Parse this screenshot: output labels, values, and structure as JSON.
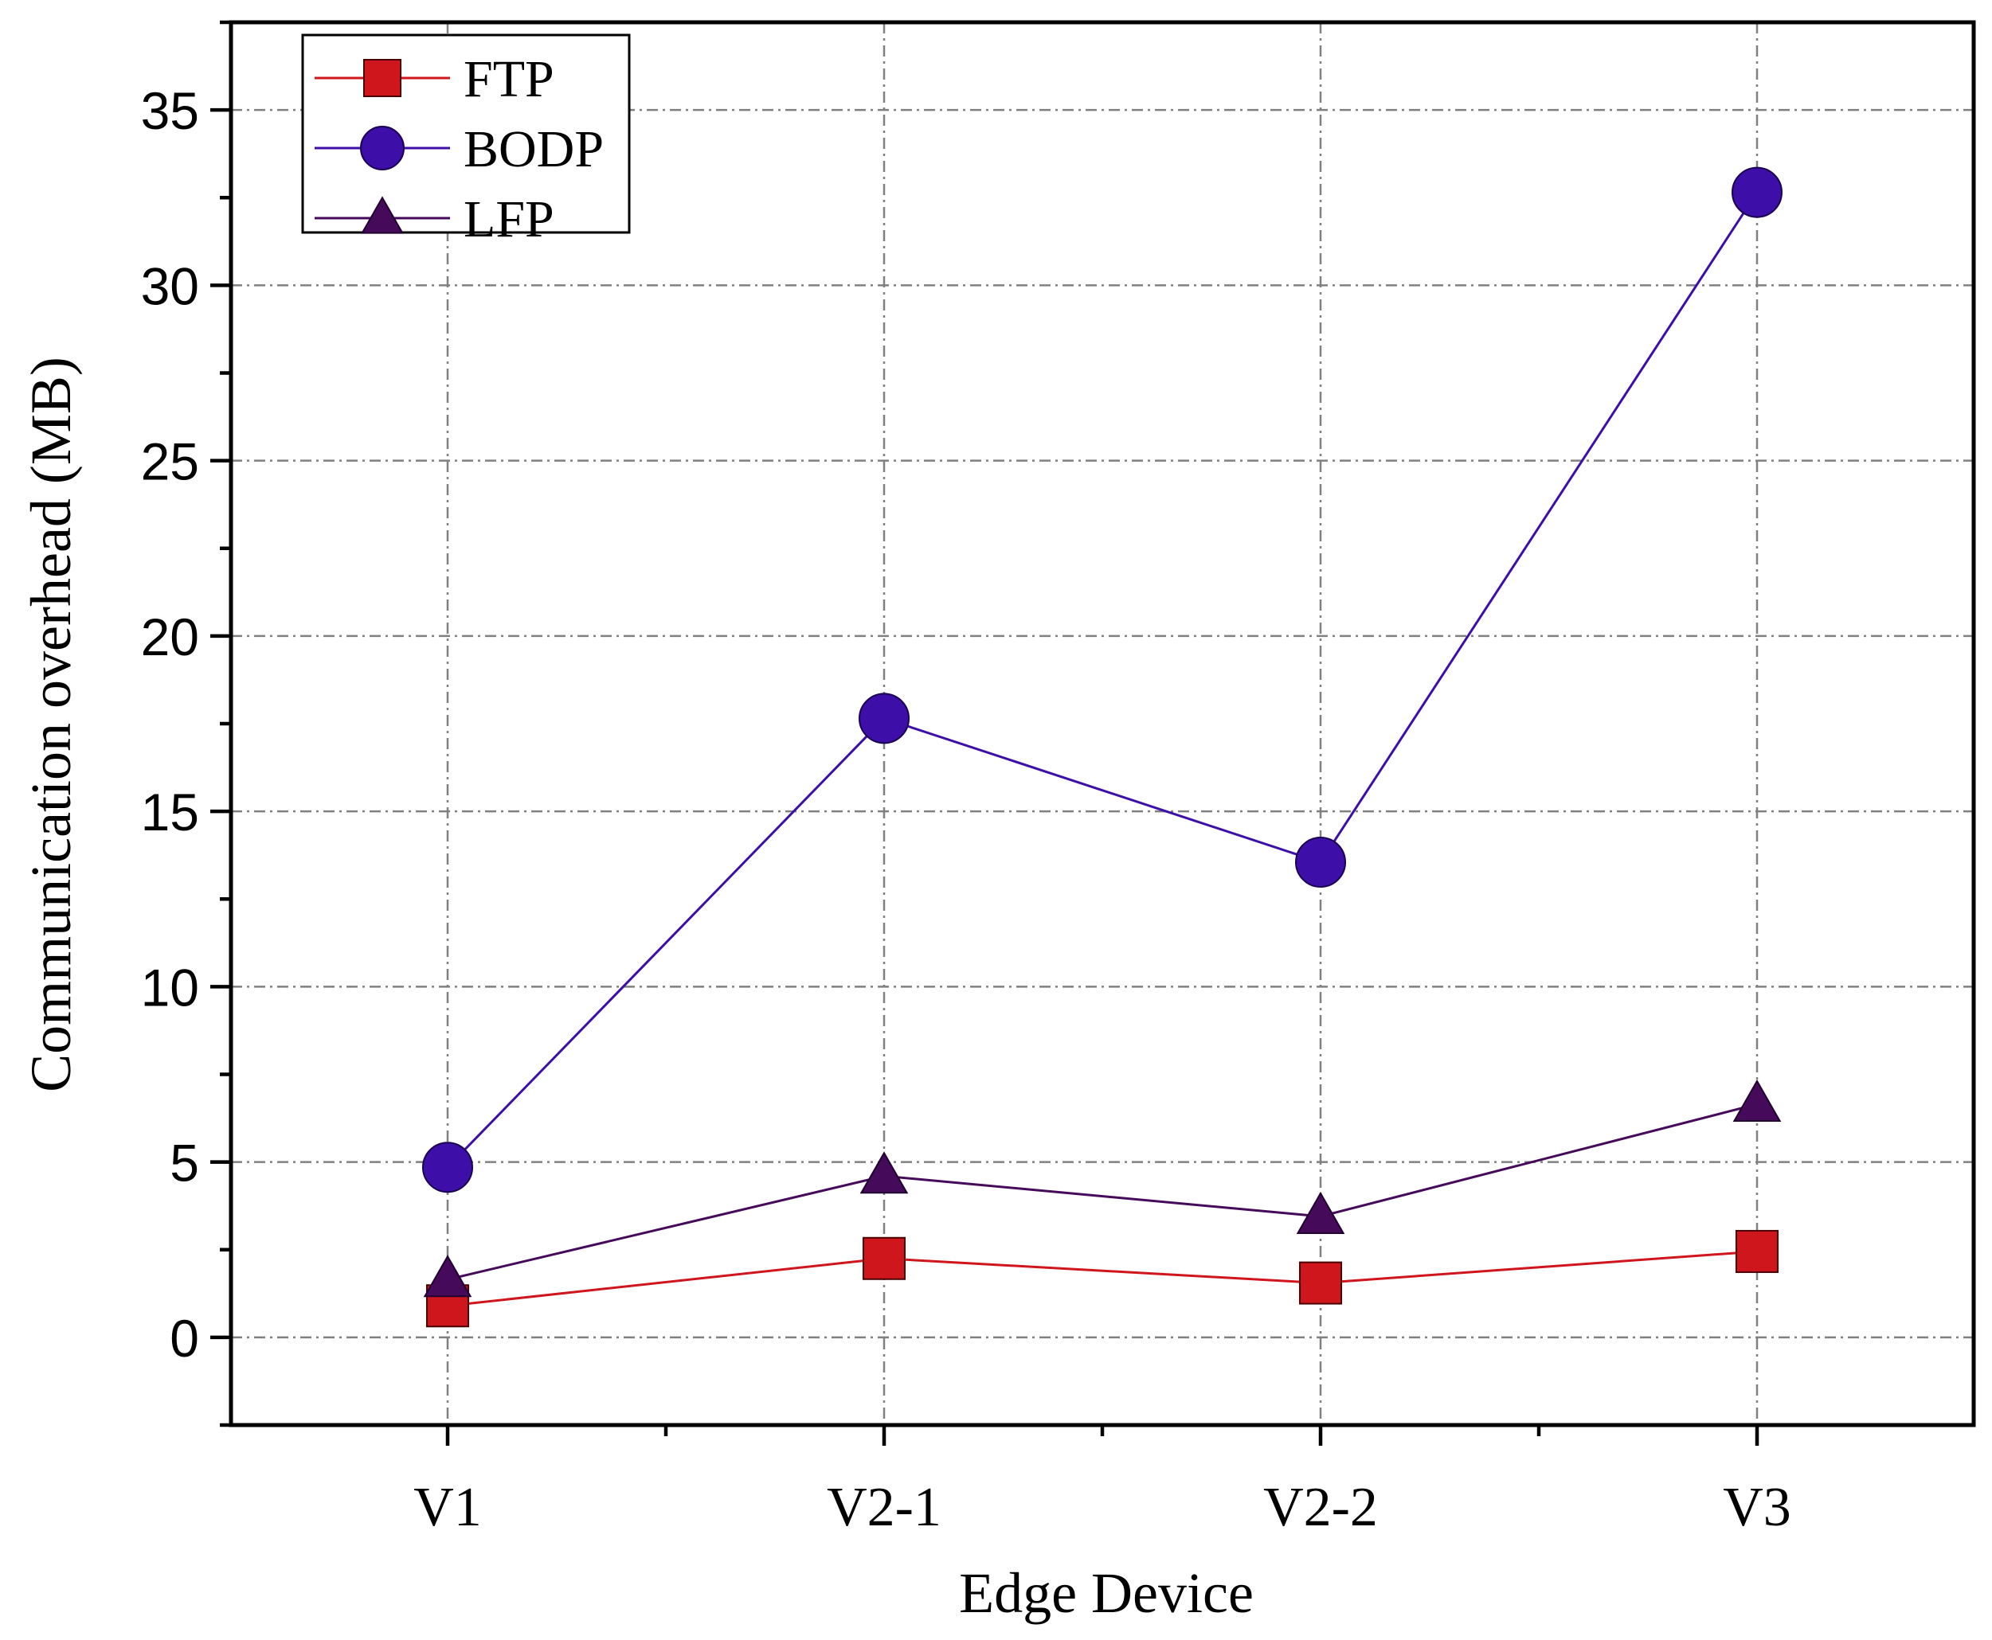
{
  "chart_data": {
    "type": "line",
    "title": "",
    "xlabel": "Edge Device",
    "ylabel": "Communication overhead (MB)",
    "categories": [
      "V1",
      "V2-1",
      "V2-2",
      "V3"
    ],
    "ylim": [
      -2.5,
      37.5
    ],
    "yticks": [
      0,
      5,
      10,
      15,
      20,
      25,
      30,
      35
    ],
    "ytick_labels": [
      "0",
      "5",
      "10",
      "15",
      "20",
      "25",
      "30",
      "35"
    ],
    "grid": true,
    "legend_position": "top-left",
    "series": [
      {
        "name": "FTP",
        "marker": "square",
        "color": "#d0161d",
        "values": [
          0.9,
          2.25,
          1.55,
          2.45
        ]
      },
      {
        "name": "BODP",
        "marker": "circle",
        "color": "#3d0fa8",
        "values": [
          4.85,
          17.65,
          13.55,
          32.65
        ]
      },
      {
        "name": "LFP",
        "marker": "triangle",
        "color": "#450a5a",
        "values": [
          1.65,
          4.6,
          3.45,
          6.65
        ]
      }
    ]
  }
}
